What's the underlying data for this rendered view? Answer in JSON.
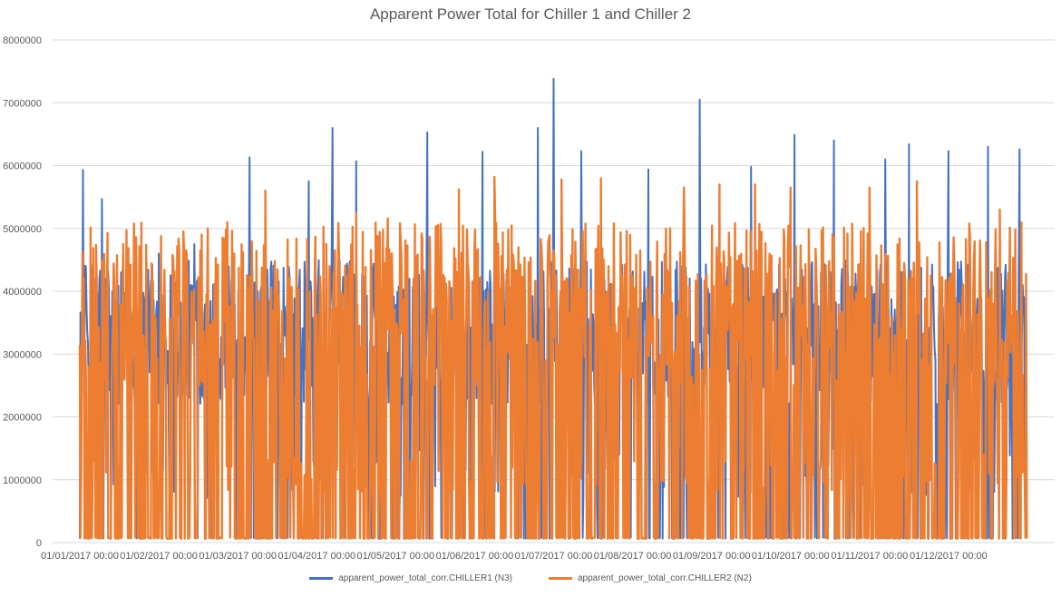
{
  "chart_data": {
    "type": "line",
    "title": "Apparent Power Total for Chiller 1 and Chiller 2",
    "xlabel": "",
    "ylabel": "",
    "ylim": [
      0,
      8000000
    ],
    "yticks": [
      "0",
      "1000000",
      "2000000",
      "3000000",
      "4000000",
      "5000000",
      "6000000",
      "7000000",
      "8000000"
    ],
    "xticks": [
      "01/01/2017 00:00",
      "01/02/2017 00:00",
      "01/03/2017 00:00",
      "01/04/2017 00:00",
      "01/05/2017 00:00",
      "01/06/2017 00:00",
      "01/07/2017 00:00",
      "01/08/2017 00:00",
      "01/09/2017 00:00",
      "01/10/2017 00:00",
      "01/11/2017 00:00",
      "01/12/2017 00:00"
    ],
    "grid": true,
    "legend_position": "bottom",
    "series": [
      {
        "name": "apparent_power_total_corr.CHILLER1 (N3)",
        "color": "#4472C4",
        "peaks": [
          {
            "x": 0.04,
            "y": 5930000
          },
          {
            "x": 0.28,
            "y": 5470000
          },
          {
            "x": 1.0,
            "y": 4600000
          },
          {
            "x": 1.45,
            "y": 4750000
          },
          {
            "x": 2.15,
            "y": 6130000
          },
          {
            "x": 2.9,
            "y": 5750000
          },
          {
            "x": 3.2,
            "y": 6600000
          },
          {
            "x": 3.5,
            "y": 6070000
          },
          {
            "x": 4.4,
            "y": 6530000
          },
          {
            "x": 5.1,
            "y": 6220000
          },
          {
            "x": 5.8,
            "y": 6600000
          },
          {
            "x": 6.0,
            "y": 7380000
          },
          {
            "x": 6.35,
            "y": 6230000
          },
          {
            "x": 7.2,
            "y": 5940000
          },
          {
            "x": 7.85,
            "y": 7050000
          },
          {
            "x": 8.5,
            "y": 5980000
          },
          {
            "x": 9.05,
            "y": 6490000
          },
          {
            "x": 9.55,
            "y": 6400000
          },
          {
            "x": 10.2,
            "y": 6100000
          },
          {
            "x": 10.5,
            "y": 6340000
          },
          {
            "x": 11.0,
            "y": 6230000
          },
          {
            "x": 11.5,
            "y": 6300000
          },
          {
            "x": 11.9,
            "y": 6260000
          }
        ]
      },
      {
        "name": "apparent_power_total_corr.CHILLER2 (N2)",
        "color": "#ED7D31",
        "peaks": [
          {
            "x": 0.05,
            "y": 4200000
          },
          {
            "x": 0.55,
            "y": 4750000
          },
          {
            "x": 1.25,
            "y": 4840000
          },
          {
            "x": 1.85,
            "y": 4980000
          },
          {
            "x": 2.35,
            "y": 5600000
          },
          {
            "x": 3.5,
            "y": 5250000
          },
          {
            "x": 3.9,
            "y": 5160000
          },
          {
            "x": 4.8,
            "y": 5620000
          },
          {
            "x": 5.25,
            "y": 5820000
          },
          {
            "x": 6.1,
            "y": 5780000
          },
          {
            "x": 6.6,
            "y": 5800000
          },
          {
            "x": 7.65,
            "y": 5650000
          },
          {
            "x": 8.1,
            "y": 5700000
          },
          {
            "x": 8.55,
            "y": 5700000
          },
          {
            "x": 9.0,
            "y": 5650000
          },
          {
            "x": 10.0,
            "y": 5650000
          },
          {
            "x": 10.6,
            "y": 5750000
          },
          {
            "x": 11.65,
            "y": 5300000
          }
        ]
      }
    ]
  }
}
